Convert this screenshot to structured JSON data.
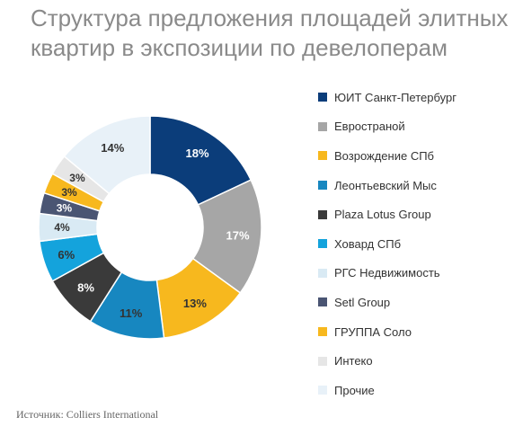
{
  "title_lines": [
    "Структура предложения площадей элитных",
    "квартир в экспозиции по девелоперам"
  ],
  "source": "Источник: Colliers International",
  "chart_data": {
    "type": "pie",
    "title": "Структура предложения площадей элитных квартир в экспозиции по девелоперам",
    "legend_position": "right",
    "unit": "%",
    "slices": [
      {
        "name": "ЮИТ Санкт-Петербург",
        "value": 18,
        "label": "18%",
        "color": "#0b3d7a",
        "label_color": "#ffffff"
      },
      {
        "name": "Евространой",
        "value": 17,
        "label": "17%",
        "color": "#a6a6a6",
        "label_color": "#ffffff"
      },
      {
        "name": "Возрождение СПб",
        "value": 13,
        "label": "13%",
        "color": "#f7b81e",
        "label_color": "#333333"
      },
      {
        "name": "Леонтьевский Мыс",
        "value": 11,
        "label": "11%",
        "color": "#1787c0",
        "label_color": "#333333"
      },
      {
        "name": "Plaza Lotus Group",
        "value": 8,
        "label": "8%",
        "color": "#3a3a3a",
        "label_color": "#ffffff"
      },
      {
        "name": "Ховард СПб",
        "value": 6,
        "label": "6%",
        "color": "#14a3dc",
        "label_color": "#333333"
      },
      {
        "name": "РГС Недвижимость",
        "value": 4,
        "label": "4%",
        "color": "#d9eaf4",
        "label_color": "#333333"
      },
      {
        "name": "Setl Group",
        "value": 3,
        "label": "3%",
        "color": "#4a5573",
        "label_color": "#ffffff"
      },
      {
        "name": "ГРУППА Соло",
        "value": 3,
        "label": "3%",
        "color": "#f7b81e",
        "label_color": "#333333"
      },
      {
        "name": "Интеко",
        "value": 3,
        "label": "3%",
        "color": "#e6e6e6",
        "label_color": "#333333"
      },
      {
        "name": "Прочие",
        "value": 14,
        "label": "14%",
        "color": "#e8f1f8",
        "label_color": "#333333"
      }
    ]
  }
}
